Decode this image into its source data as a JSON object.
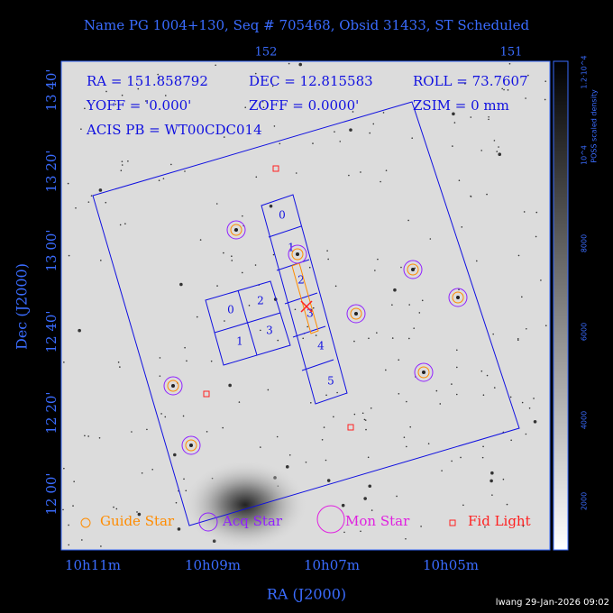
{
  "header": {
    "title": "Name PG 1004+130, Seq # 705468, Obsid 31433, ST Scheduled"
  },
  "info": {
    "ra": "RA = 151.858792",
    "dec": "DEC = 12.815583",
    "roll": "ROLL = 73.7607",
    "yoff": "YOFF =  '0.000'",
    "zoff": "ZOFF =  0.0000'",
    "zsim": "ZSIM = 0 mm",
    "acis": "ACIS PB = WT00CDC014"
  },
  "axes": {
    "top_ticks": [
      "152",
      "151"
    ],
    "left_ticks": [
      "13 40'",
      "13 20'",
      "13 00'",
      "12 40'",
      "12 20'",
      "12 00'"
    ],
    "bottom_ticks": [
      "10h11m",
      "10h09m",
      "10h07m",
      "10h05m"
    ],
    "x_label": "RA (J2000)",
    "y_label": "Dec (J2000)"
  },
  "colorbar": {
    "label": "POSS scaled density",
    "ticks": [
      "2000",
      "4000",
      "6000",
      "8000",
      "10^4",
      "1.2·10^4"
    ]
  },
  "chips": {
    "s_array": [
      "0",
      "1",
      "2",
      "3",
      "4",
      "5"
    ],
    "i_array": [
      "0",
      "2",
      "1",
      "3"
    ]
  },
  "legend": [
    "Guide Star",
    "Acq Star",
    "Mon Star",
    "Fid Light"
  ],
  "footer": "lwang 29-Jan-2026 09:02"
}
